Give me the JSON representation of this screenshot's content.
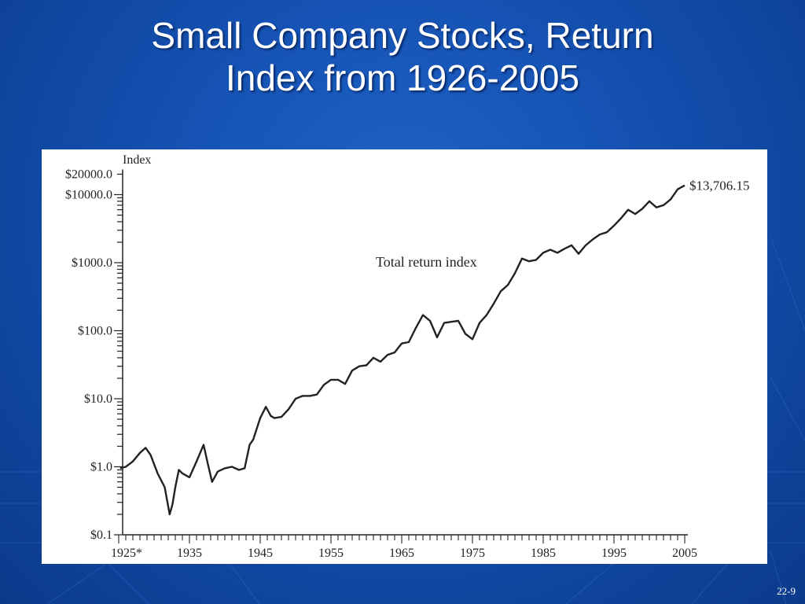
{
  "slide": {
    "title_line1": "Small Company Stocks, Return",
    "title_line2": "Index from 1926-2005",
    "slide_number": "22-9"
  },
  "colors": {
    "background": "#1450b0",
    "title_text": "#ffffff",
    "line": "#222222"
  },
  "chart_data": {
    "type": "line",
    "title": "",
    "ylabel": "Index",
    "xlabel": "",
    "yscale": "log",
    "ylim": [
      0.1,
      20000
    ],
    "xlim": [
      1925,
      2005
    ],
    "ytick_labels": [
      "$20000.0",
      "$10000.0",
      "$1000.0",
      "$100.0",
      "$10.0",
      "$1.0",
      "$0.1"
    ],
    "ytick_values": [
      20000,
      10000,
      1000,
      100,
      10,
      1,
      0.1
    ],
    "xtick_labels": [
      "1925*",
      "1935",
      "1945",
      "1955",
      "1965",
      "1975",
      "1985",
      "1995",
      "2005"
    ],
    "xtick_values": [
      1925,
      1935,
      1945,
      1955,
      1965,
      1975,
      1985,
      1995,
      2005
    ],
    "annotations": [
      {
        "text": "Total return index",
        "x": 1972,
        "y": 1000
      },
      {
        "text": "$13,706.15",
        "x": 2005,
        "y": 13706.15
      }
    ],
    "series": [
      {
        "x": [
          1925.2,
          1926,
          1927,
          1928,
          1928.8,
          1929.5,
          1930.5,
          1931.5,
          1932.2,
          1932.6,
          1933,
          1933.5,
          1934,
          1935,
          1936,
          1937,
          1937.6,
          1938.2,
          1939,
          1940,
          1941,
          1942,
          1942.8,
          1943.5,
          1944,
          1945,
          1945.8,
          1946.5,
          1947,
          1948,
          1949,
          1950,
          1951,
          1952,
          1953,
          1954,
          1955,
          1956,
          1957,
          1958,
          1959,
          1960,
          1961,
          1962,
          1963,
          1964,
          1965,
          1966,
          1967,
          1968,
          1969,
          1970,
          1971,
          1972,
          1973,
          1974,
          1975,
          1976,
          1977,
          1978,
          1979,
          1980,
          1981,
          1982,
          1983,
          1984,
          1985,
          1986,
          1987,
          1988,
          1989,
          1990,
          1991,
          1992,
          1993,
          1994,
          1995,
          1996,
          1997,
          1998,
          1999,
          2000,
          2001,
          2002,
          2003,
          2004,
          2005
        ],
        "y": [
          0.95,
          1.0,
          1.2,
          1.6,
          1.9,
          1.5,
          0.8,
          0.5,
          0.2,
          0.28,
          0.5,
          0.9,
          0.8,
          0.7,
          1.2,
          2.1,
          1.1,
          0.6,
          0.85,
          0.95,
          1.0,
          0.9,
          0.95,
          2.1,
          2.5,
          5.2,
          7.6,
          5.6,
          5.2,
          5.4,
          7.0,
          10.0,
          11.0,
          11.0,
          11.5,
          16.0,
          19.0,
          19.0,
          16.5,
          26.0,
          30.0,
          31.0,
          40.0,
          35.0,
          44.0,
          48.0,
          65.0,
          68.0,
          110.0,
          170.0,
          140.0,
          80.0,
          130.0,
          135.0,
          140.0,
          90.0,
          75.0,
          130.0,
          170.0,
          250.0,
          380.0,
          470.0,
          700.0,
          1150.0,
          1050.0,
          1100.0,
          1400.0,
          1550.0,
          1400.0,
          1600.0,
          1800.0,
          1350.0,
          1800.0,
          2200.0,
          2600.0,
          2800.0,
          3500.0,
          4500.0,
          6000.0,
          5200.0,
          6200.0,
          8000.0,
          6500.0,
          7000.0,
          8500.0,
          12000.0,
          13706.15
        ]
      }
    ]
  }
}
